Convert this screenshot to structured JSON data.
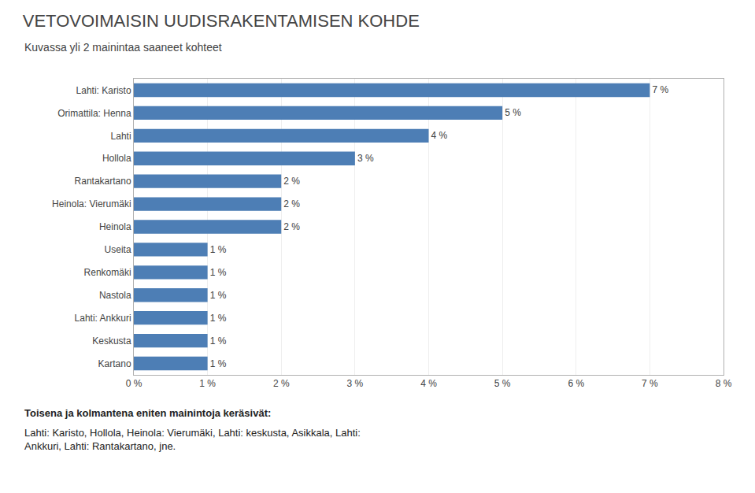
{
  "chart_data": {
    "type": "bar",
    "orientation": "horizontal",
    "title": "VETOVOIMAISIN UUDISRAKENTAMISEN KOHDE",
    "subtitle": "Kuvassa yli 2 mainintaa saaneet kohteet",
    "categories": [
      "Kartano",
      "Keskusta",
      "Lahti: Ankkuri",
      "Nastola",
      "Renkomäki",
      "Useita",
      "Heinola",
      "Heinola: Vierumäki",
      "Rantakartano",
      "Hollola",
      "Lahti",
      "Orimattila: Henna",
      "Lahti: Karisto"
    ],
    "values": [
      1,
      1,
      1,
      1,
      1,
      1,
      2,
      2,
      2,
      3,
      4,
      5,
      7
    ],
    "value_labels": [
      "1 %",
      "1 %",
      "1 %",
      "1 %",
      "1 %",
      "1 %",
      "2 %",
      "2 %",
      "2 %",
      "3 %",
      "4 %",
      "5 %",
      "7 %"
    ],
    "data_labels": true,
    "color": "#4d7eb5",
    "xlim": [
      0,
      8
    ],
    "xticks": [
      {
        "value": 0,
        "label": "0 %"
      },
      {
        "value": 1,
        "label": "1 %"
      },
      {
        "value": 2,
        "label": "2 %"
      },
      {
        "value": 3,
        "label": "3 %"
      },
      {
        "value": 4,
        "label": "4 %"
      },
      {
        "value": 5,
        "label": "5 %"
      },
      {
        "value": 6,
        "label": "6 %"
      },
      {
        "value": 7,
        "label": "7 %"
      },
      {
        "value": 8,
        "label": "8 %"
      }
    ],
    "grid": true,
    "annotations": [
      "Toisena ja kolmantena eniten mainintoja keräsivät:",
      "Lahti: Karisto, Hollola, Heinola: Vierumäki, Lahti: keskusta, Asikkala, Lahti:\nAnkkuri, Lahti: Rantakartano, jne."
    ]
  }
}
